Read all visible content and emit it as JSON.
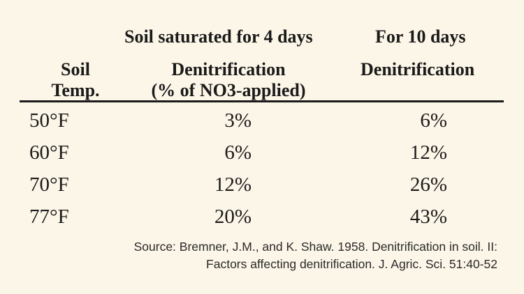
{
  "chart_data": {
    "type": "table",
    "group_headers": [
      "Soil saturated for 4 days",
      "For 10 days"
    ],
    "columns": [
      "Soil Temp.",
      "Denitrification (% of NO3-applied)",
      "Denitrification"
    ],
    "rows": [
      [
        "50°F",
        "3%",
        "6%"
      ],
      [
        "60°F",
        "6%",
        "12%"
      ],
      [
        "70°F",
        "12%",
        "26%"
      ],
      [
        "77°F",
        "20%",
        "43%"
      ]
    ]
  },
  "header": {
    "group_4_days": "Soil saturated for 4 days",
    "group_10_days": "For 10 days",
    "col_temp_line1": "Soil",
    "col_temp_line2": "Temp.",
    "col_4_days_line1": "Denitrification",
    "col_4_days_line2": "(% of NO3-applied)",
    "col_10_days_line1": "Denitrification"
  },
  "source": {
    "line1": "Source: Bremner, J.M., and K. Shaw. 1958. Denitrification in soil. II:",
    "line2": "Factors affecting denitrification. J. Agric. Sci. 51:40-52"
  }
}
